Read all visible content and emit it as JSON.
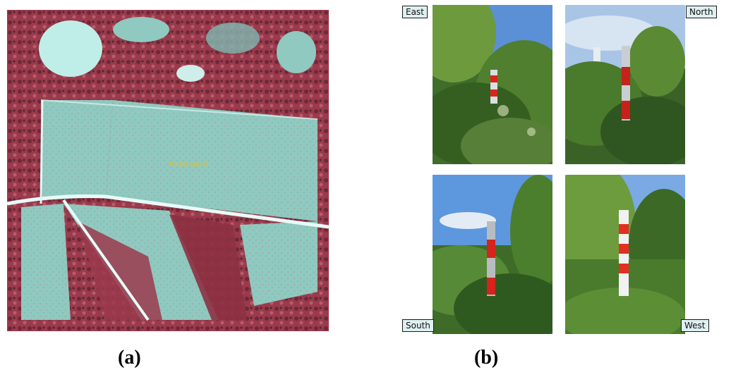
{
  "aerial": {
    "label_text": "Portal Site 9",
    "colors": {
      "field": "#8fc9bf",
      "vegetation": "#9b3a4c",
      "road": "#e6fbf8"
    }
  },
  "photos": {
    "east": {
      "label": "East"
    },
    "north": {
      "label": "North"
    },
    "south": {
      "label": "South"
    },
    "west": {
      "label": "West"
    }
  },
  "captions": {
    "a": "(a)",
    "b": "(b)"
  }
}
